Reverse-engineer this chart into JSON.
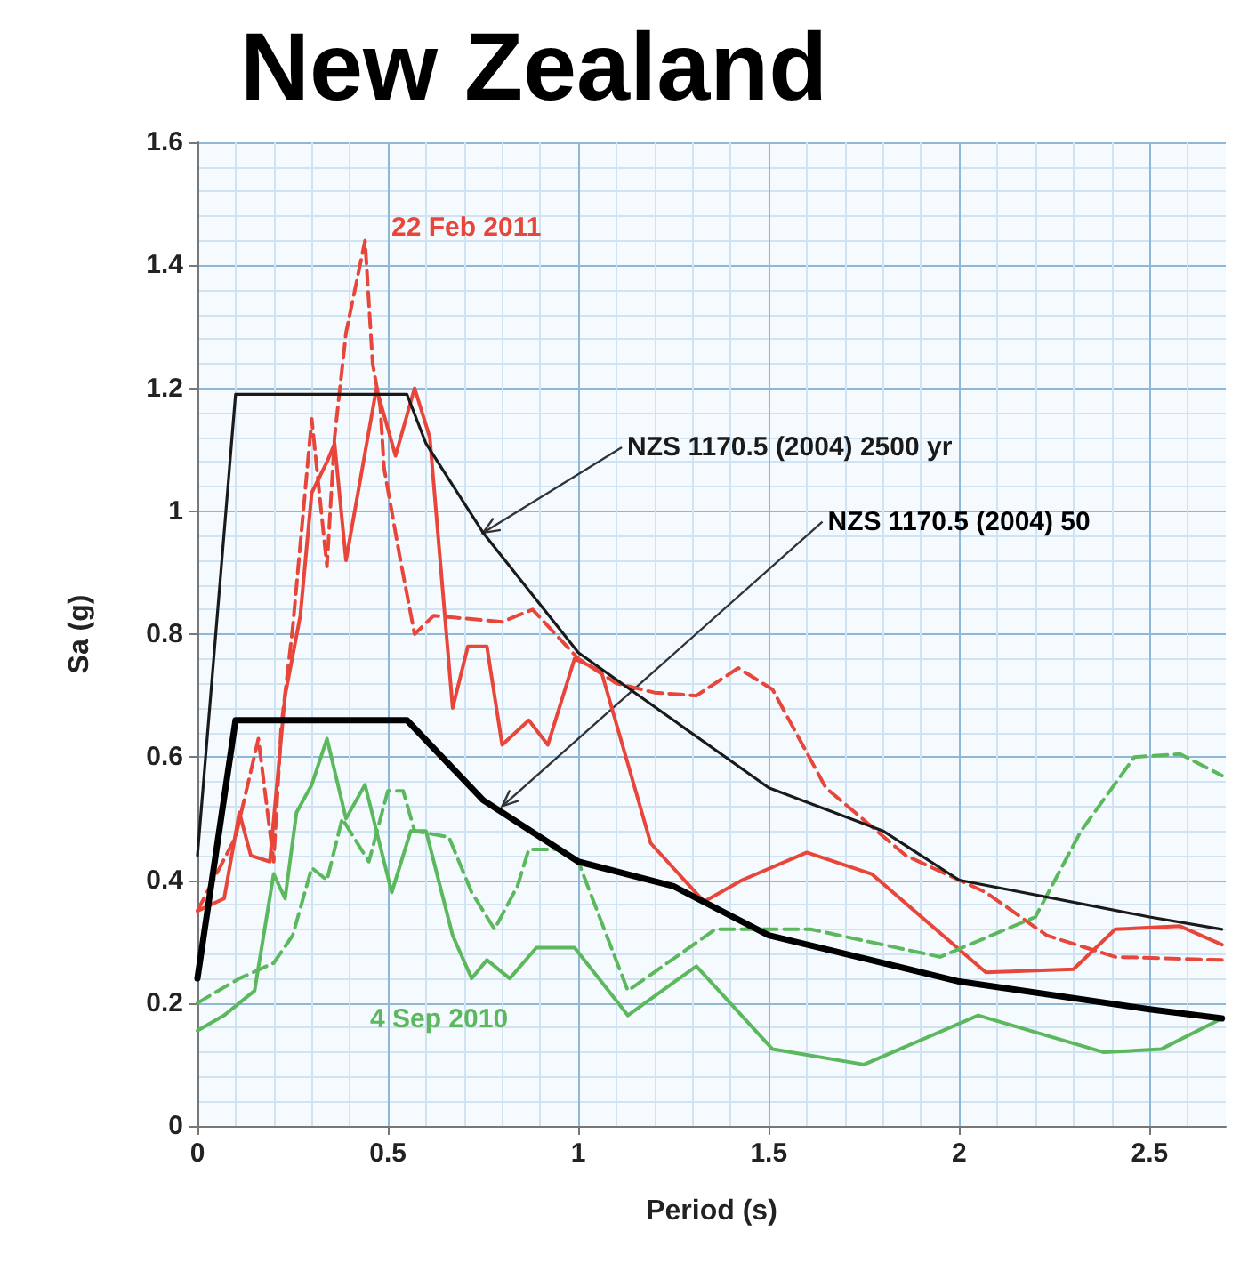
{
  "chart_data": {
    "type": "line",
    "title": "New Zealand",
    "xlabel": "Period (s)",
    "ylabel": "Sa (g)",
    "xlim": [
      0,
      2.7
    ],
    "xticks": [
      0,
      0.5,
      1,
      1.5,
      2,
      2.5
    ],
    "ylim": [
      0,
      1.6
    ],
    "yticks": [
      0,
      0.2,
      0.4,
      0.6,
      0.8,
      1,
      1.2,
      1.4,
      1.6
    ],
    "grid": true,
    "marker": "none",
    "series": [
      {
        "color": "#e8463a",
        "line_style": "solid",
        "x": [
          0,
          0.07,
          0.11,
          0.14,
          0.19,
          0.23,
          0.27,
          0.3,
          0.34,
          0.36,
          0.39,
          0.47,
          0.52,
          0.57,
          0.61,
          0.67,
          0.71,
          0.76,
          0.8,
          0.87,
          0.92,
          0.99,
          1.06,
          1.19,
          1.33,
          1.43,
          1.6,
          1.77,
          2.07,
          2.3,
          2.41,
          2.58,
          2.69
        ],
        "values": [
          0.35,
          0.37,
          0.51,
          0.44,
          0.43,
          0.7,
          0.83,
          1.03,
          1.08,
          1.11,
          0.92,
          1.2,
          1.09,
          1.2,
          1.12,
          0.68,
          0.78,
          0.78,
          0.62,
          0.66,
          0.62,
          0.76,
          0.74,
          0.46,
          0.365,
          0.4,
          0.445,
          0.41,
          0.25,
          0.255,
          0.32,
          0.325,
          0.295
        ]
      },
      {
        "color": "#e8463a",
        "line_style": "dashed",
        "x": [
          0,
          0.1,
          0.16,
          0.2,
          0.22,
          0.25,
          0.3,
          0.34,
          0.36,
          0.39,
          0.44,
          0.46,
          0.48,
          0.49,
          0.53,
          0.57,
          0.62,
          0.8,
          0.88,
          1,
          1.1,
          1.2,
          1.31,
          1.42,
          1.51,
          1.65,
          1.86,
          2.07,
          2.23,
          2.41,
          2.69
        ],
        "values": [
          0.35,
          0.47,
          0.63,
          0.43,
          0.65,
          0.81,
          1.15,
          0.91,
          1.12,
          1.29,
          1.44,
          1.24,
          1.17,
          1.07,
          0.93,
          0.8,
          0.83,
          0.82,
          0.84,
          0.76,
          0.72,
          0.705,
          0.7,
          0.745,
          0.71,
          0.55,
          0.44,
          0.38,
          0.31,
          0.275,
          0.27
        ]
      },
      {
        "color": "#5cb85c",
        "line_style": "solid",
        "x": [
          0,
          0.07,
          0.15,
          0.2,
          0.23,
          0.26,
          0.3,
          0.34,
          0.39,
          0.44,
          0.51,
          0.56,
          0.6,
          0.67,
          0.72,
          0.76,
          0.82,
          0.89,
          0.99,
          1.13,
          1.31,
          1.51,
          1.75,
          2.05,
          2.38,
          2.53,
          2.69
        ],
        "values": [
          0.155,
          0.18,
          0.22,
          0.41,
          0.37,
          0.51,
          0.555,
          0.63,
          0.5,
          0.555,
          0.38,
          0.48,
          0.48,
          0.31,
          0.24,
          0.27,
          0.24,
          0.29,
          0.29,
          0.18,
          0.26,
          0.125,
          0.1,
          0.18,
          0.12,
          0.125,
          0.175
        ]
      },
      {
        "color": "#5cb85c",
        "line_style": "dashed",
        "x": [
          0,
          0.11,
          0.2,
          0.25,
          0.3,
          0.34,
          0.38,
          0.45,
          0.5,
          0.54,
          0.57,
          0.66,
          0.72,
          0.78,
          0.84,
          0.87,
          0.95,
          1,
          1.13,
          1.36,
          1.61,
          1.95,
          2.2,
          2.32,
          2.46,
          2.58,
          2.69
        ],
        "values": [
          0.2,
          0.24,
          0.265,
          0.31,
          0.42,
          0.4,
          0.5,
          0.43,
          0.545,
          0.545,
          0.48,
          0.47,
          0.38,
          0.32,
          0.39,
          0.45,
          0.45,
          0.43,
          0.22,
          0.32,
          0.32,
          0.275,
          0.34,
          0.48,
          0.6,
          0.605,
          0.57
        ]
      },
      {
        "color": "#1a1a1a",
        "line_style": "solid",
        "x": [
          0,
          0.1,
          0.55,
          0.6,
          0.75,
          1,
          1.25,
          1.5,
          1.8,
          2,
          2.5,
          2.69
        ],
        "values": [
          0.44,
          1.19,
          1.19,
          1.11,
          0.965,
          0.77,
          0.66,
          0.55,
          0.48,
          0.4,
          0.34,
          0.32
        ]
      },
      {
        "color": "#000000",
        "line_style": "solid",
        "x": [
          0,
          0.1,
          0.55,
          0.75,
          1,
          1.25,
          1.5,
          2,
          2.5,
          2.69
        ],
        "values": [
          0.24,
          0.66,
          0.66,
          0.53,
          0.43,
          0.39,
          0.31,
          0.235,
          0.19,
          0.175
        ]
      }
    ],
    "annotations": [
      "22 Feb 2011",
      "4 Sep 2010",
      {
        "text": "NZS 1170.5 (2004) 2500 yr",
        "x": 0.75,
        "y": 0.965
      },
      {
        "text": "NZS 1170.5 (2004) 50",
        "x": 0.8,
        "y": 0.52
      }
    ]
  }
}
